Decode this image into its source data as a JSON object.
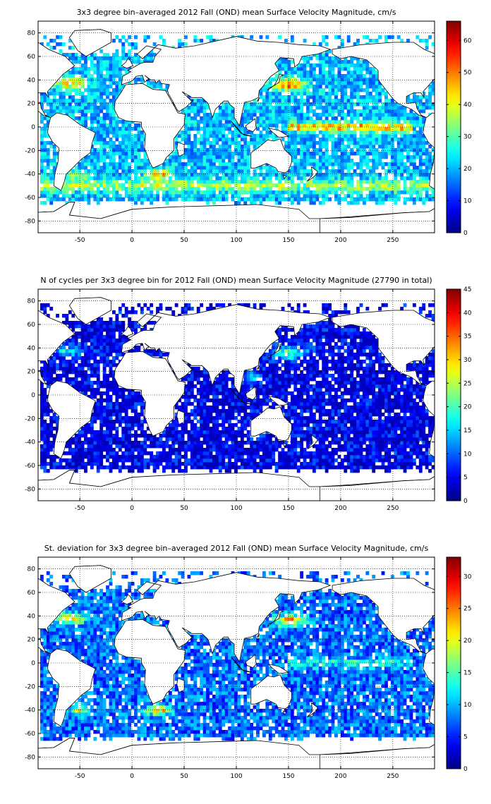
{
  "figure": {
    "background": "#ffffff"
  },
  "chart_data": [
    {
      "type": "heatmap",
      "title": "3x3 degree bin–averaged 2012 Fall (OND) mean Surface Velocity Magnitude, cm/s",
      "xlabel": "",
      "ylabel": "",
      "xlim": [
        -90,
        290
      ],
      "ylim": [
        -90,
        90
      ],
      "xticks": [
        -50,
        0,
        50,
        100,
        150,
        200,
        250
      ],
      "yticks": [
        80,
        60,
        40,
        20,
        0,
        -20,
        -40,
        -60,
        -80
      ],
      "grid": "dotted",
      "bin_size_deg": 3,
      "colorbar": {
        "min": 0,
        "max": 66,
        "ticks": [
          0,
          10,
          20,
          30,
          40,
          50,
          60
        ],
        "colormap": "jet"
      },
      "typical_value": 20,
      "high_value_regions": [
        "Gulf Stream",
        "Kuroshio",
        "equatorial Pacific",
        "Agulhas",
        "Antarctic Circumpolar Current"
      ]
    },
    {
      "type": "heatmap",
      "title": "N of cycles per 3x3 degree bin for 2012 Fall (OND) mean Surface Velocity Magnitude (27790 in total)",
      "xlabel": "",
      "ylabel": "",
      "xlim": [
        -90,
        290
      ],
      "ylim": [
        -90,
        90
      ],
      "xticks": [
        -50,
        0,
        50,
        100,
        150,
        200,
        250
      ],
      "yticks": [
        80,
        60,
        40,
        20,
        0,
        -20,
        -40,
        -60,
        -80
      ],
      "grid": "dotted",
      "bin_size_deg": 3,
      "total": 27790,
      "colorbar": {
        "min": 0,
        "max": 45,
        "ticks": [
          0,
          5,
          10,
          15,
          20,
          25,
          30,
          35,
          40,
          45
        ],
        "colormap": "jet"
      },
      "typical_value": 6,
      "high_value_regions": [
        "Kuroshio",
        "North Atlantic",
        "South China Sea"
      ]
    },
    {
      "type": "heatmap",
      "title": "St. deviation for 3x3 degree bin–averaged 2012 Fall (OND) mean Surface Velocity Magnitude, cm/s",
      "xlabel": "",
      "ylabel": "",
      "xlim": [
        -90,
        290
      ],
      "ylim": [
        -90,
        90
      ],
      "xticks": [
        -50,
        0,
        50,
        100,
        150,
        200,
        250
      ],
      "yticks": [
        80,
        60,
        40,
        20,
        0,
        -20,
        -40,
        -60,
        -80
      ],
      "grid": "dotted",
      "bin_size_deg": 3,
      "colorbar": {
        "min": 0,
        "max": 33,
        "ticks": [
          0,
          5,
          10,
          15,
          20,
          25,
          30
        ],
        "colormap": "jet"
      },
      "typical_value": 9,
      "high_value_regions": [
        "Gulf Stream",
        "Kuroshio",
        "Agulhas",
        "Brazil-Malvinas confluence"
      ]
    }
  ]
}
